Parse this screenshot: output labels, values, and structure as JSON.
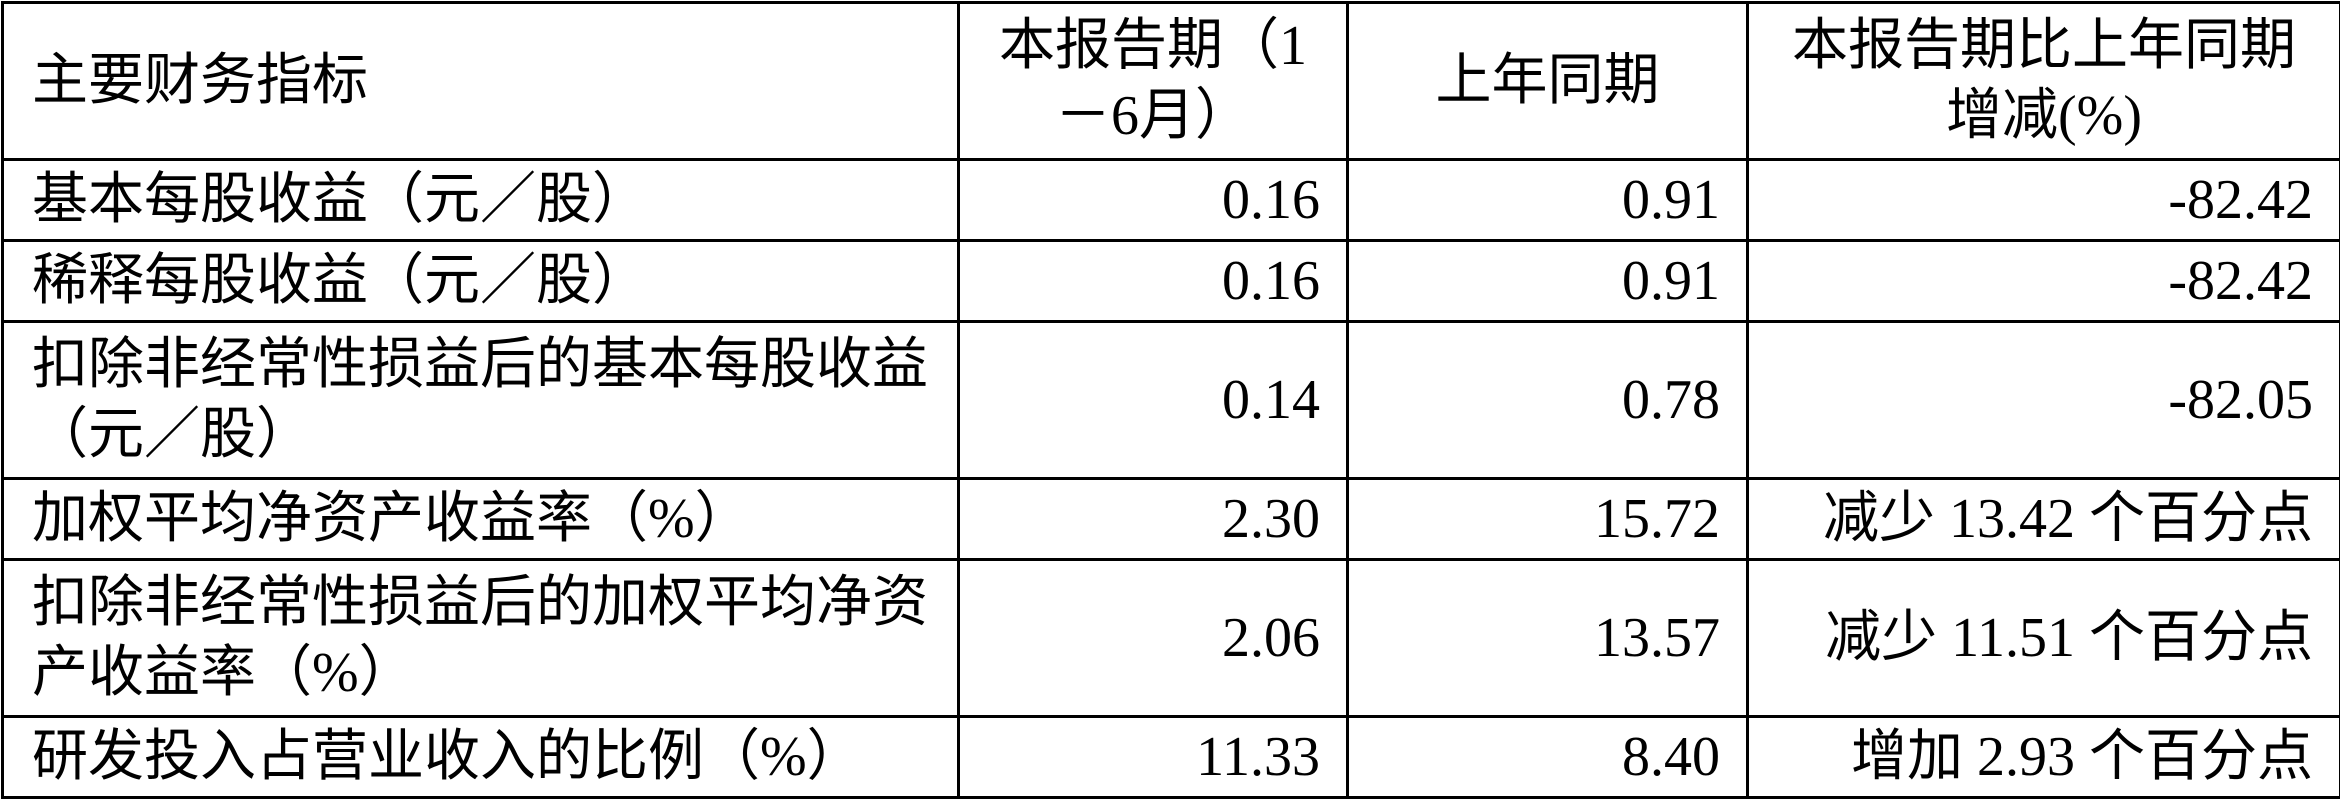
{
  "table": {
    "headers": [
      "主要财务指标",
      "本报告期（1－6月）",
      "上年同期",
      "本报告期比上年同期增减(%)"
    ],
    "rows": [
      {
        "indicator": "基本每股收益（元／股）",
        "current": "0.16",
        "prior": "0.91",
        "change": "-82.42"
      },
      {
        "indicator": "稀释每股收益（元／股）",
        "current": "0.16",
        "prior": "0.91",
        "change": "-82.42"
      },
      {
        "indicator": "扣除非经常性损益后的基本每股收益（元／股）",
        "current": "0.14",
        "prior": "0.78",
        "change": "-82.05"
      },
      {
        "indicator": "加权平均净资产收益率（%）",
        "current": "2.30",
        "prior": "15.72",
        "change": "减少 13.42 个百分点"
      },
      {
        "indicator": "扣除非经常性损益后的加权平均净资产收益率（%）",
        "current": "2.06",
        "prior": "13.57",
        "change": "减少 11.51 个百分点"
      },
      {
        "indicator": "研发投入占营业收入的比例（%）",
        "current": "11.33",
        "prior": "8.40",
        "change": "增加 2.93 个百分点"
      }
    ]
  }
}
